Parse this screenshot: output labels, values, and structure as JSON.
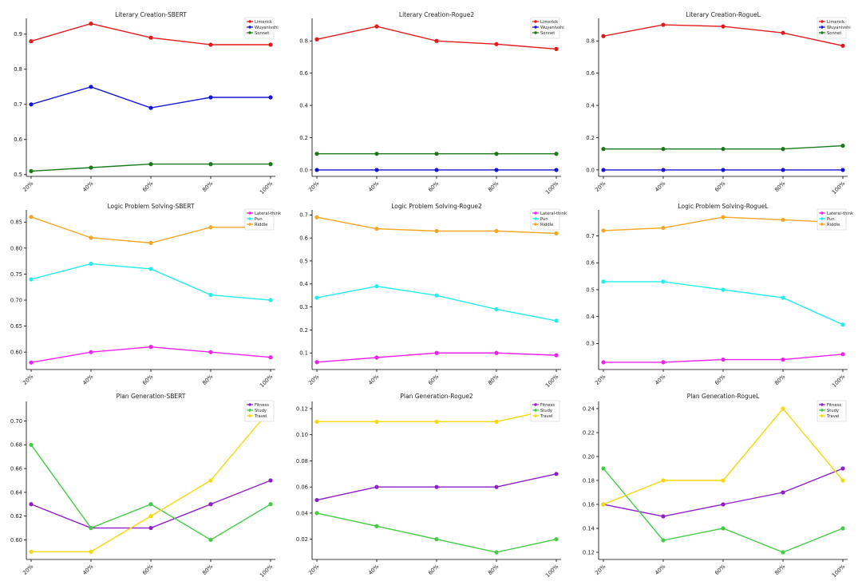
{
  "chart_data": [
    {
      "type": "line",
      "title": "Literary Creation-SBERT",
      "categories": [
        "20%",
        "40%",
        "60%",
        "80%",
        "100%"
      ],
      "ylim": [
        0.495,
        0.945
      ],
      "yticks": [
        0.5,
        0.6,
        0.7,
        0.8,
        0.9
      ],
      "ytick_labels": [
        "0.5",
        "0.6",
        "0.7",
        "0.8",
        "0.9"
      ],
      "legend": "top-right",
      "series": [
        {
          "name": "Limerick",
          "color": "#e31a1c",
          "values": [
            0.88,
            0.93,
            0.89,
            0.87,
            0.87
          ]
        },
        {
          "name": "Wuyanlvshi",
          "color": "#1515d6",
          "values": [
            0.7,
            0.75,
            0.69,
            0.72,
            0.72
          ]
        },
        {
          "name": "Sonnet",
          "color": "#1a7a1a",
          "values": [
            0.51,
            0.52,
            0.53,
            0.53,
            0.53
          ]
        }
      ]
    },
    {
      "type": "line",
      "title": "Literary Creation-Rogue2",
      "categories": [
        "20%",
        "40%",
        "60%",
        "80%",
        "100%"
      ],
      "ylim": [
        -0.04,
        0.94
      ],
      "yticks": [
        0.0,
        0.2,
        0.4,
        0.6,
        0.8
      ],
      "ytick_labels": [
        "0.0",
        "0.2",
        "0.4",
        "0.6",
        "0.8"
      ],
      "legend": "top-right",
      "series": [
        {
          "name": "Limerick",
          "color": "#e31a1c",
          "values": [
            0.81,
            0.89,
            0.8,
            0.78,
            0.75
          ]
        },
        {
          "name": "Wuyanlvshi",
          "color": "#1515d6",
          "values": [
            0.0,
            0.0,
            0.0,
            0.0,
            0.0
          ]
        },
        {
          "name": "Sonnet",
          "color": "#1a7a1a",
          "values": [
            0.1,
            0.1,
            0.1,
            0.1,
            0.1
          ]
        }
      ]
    },
    {
      "type": "line",
      "title": "Literary Creation-RogueL",
      "categories": [
        "20%",
        "40%",
        "60%",
        "80%",
        "100%"
      ],
      "ylim": [
        -0.04,
        0.94
      ],
      "yticks": [
        0.0,
        0.2,
        0.4,
        0.6,
        0.8
      ],
      "ytick_labels": [
        "0.0",
        "0.2",
        "0.4",
        "0.6",
        "0.8"
      ],
      "legend": "top-right",
      "series": [
        {
          "name": "Limerick",
          "color": "#e31a1c",
          "values": [
            0.83,
            0.9,
            0.89,
            0.85,
            0.77
          ]
        },
        {
          "name": "Wuyanlvshi",
          "color": "#1515d6",
          "values": [
            0.0,
            0.0,
            0.0,
            0.0,
            0.0
          ]
        },
        {
          "name": "Sonnet",
          "color": "#1a7a1a",
          "values": [
            0.13,
            0.13,
            0.13,
            0.13,
            0.15
          ]
        }
      ]
    },
    {
      "type": "line",
      "title": "Logic Problem Solving-SBERT",
      "categories": [
        "20%",
        "40%",
        "60%",
        "80%",
        "100%"
      ],
      "ylim": [
        0.5665,
        0.8735
      ],
      "yticks": [
        0.6,
        0.65,
        0.7,
        0.75,
        0.8,
        0.85
      ],
      "ytick_labels": [
        "0.60",
        "0.65",
        "0.70",
        "0.75",
        "0.80",
        "0.85"
      ],
      "legend": "top-right",
      "series": [
        {
          "name": "Lateral-think",
          "color": "#ee22ee",
          "values": [
            0.58,
            0.6,
            0.61,
            0.6,
            0.59
          ]
        },
        {
          "name": "Pun",
          "color": "#22eeee",
          "values": [
            0.74,
            0.77,
            0.76,
            0.71,
            0.7
          ]
        },
        {
          "name": "Riddle",
          "color": "#f5a623",
          "values": [
            0.86,
            0.82,
            0.81,
            0.84,
            0.84
          ]
        }
      ]
    },
    {
      "type": "line",
      "title": "Logic Problem Solving-Rogue2",
      "categories": [
        "20%",
        "40%",
        "60%",
        "80%",
        "100%"
      ],
      "ylim": [
        0.028,
        0.722
      ],
      "yticks": [
        0.1,
        0.2,
        0.3,
        0.4,
        0.5,
        0.6,
        0.7
      ],
      "ytick_labels": [
        "0.1",
        "0.2",
        "0.3",
        "0.4",
        "0.5",
        "0.6",
        "0.7"
      ],
      "legend": "top-right",
      "series": [
        {
          "name": "Lateral-think",
          "color": "#ee22ee",
          "values": [
            0.06,
            0.08,
            0.1,
            0.1,
            0.09
          ]
        },
        {
          "name": "Pun",
          "color": "#22eeee",
          "values": [
            0.34,
            0.39,
            0.35,
            0.29,
            0.24
          ]
        },
        {
          "name": "Riddle",
          "color": "#f5a623",
          "values": [
            0.69,
            0.64,
            0.63,
            0.63,
            0.62
          ]
        }
      ]
    },
    {
      "type": "line",
      "title": "Logic Problem Solving-RogueL",
      "categories": [
        "20%",
        "40%",
        "60%",
        "80%",
        "100%"
      ],
      "ylim": [
        0.203,
        0.797
      ],
      "yticks": [
        0.3,
        0.4,
        0.5,
        0.6,
        0.7
      ],
      "ytick_labels": [
        "0.3",
        "0.4",
        "0.5",
        "0.6",
        "0.7"
      ],
      "legend": "top-right",
      "series": [
        {
          "name": "Lateral-think",
          "color": "#ee22ee",
          "values": [
            0.23,
            0.23,
            0.24,
            0.24,
            0.26
          ]
        },
        {
          "name": "Pun",
          "color": "#22eeee",
          "values": [
            0.53,
            0.53,
            0.5,
            0.47,
            0.37
          ]
        },
        {
          "name": "Riddle",
          "color": "#f5a623",
          "values": [
            0.72,
            0.73,
            0.77,
            0.76,
            0.75
          ]
        }
      ]
    },
    {
      "type": "line",
      "title": "Plan Generation-SBERT",
      "categories": [
        "20%",
        "40%",
        "60%",
        "80%",
        "100%"
      ],
      "ylim": [
        0.5835,
        0.7165
      ],
      "yticks": [
        0.6,
        0.62,
        0.64,
        0.66,
        0.68,
        0.7
      ],
      "ytick_labels": [
        "0.60",
        "0.62",
        "0.64",
        "0.66",
        "0.68",
        "0.70"
      ],
      "legend": "top-right",
      "series": [
        {
          "name": "Fitness",
          "color": "#8e1ec8",
          "values": [
            0.63,
            0.61,
            0.61,
            0.63,
            0.65
          ]
        },
        {
          "name": "Study",
          "color": "#44cc44",
          "values": [
            0.68,
            0.61,
            0.63,
            0.6,
            0.63
          ]
        },
        {
          "name": "Travel",
          "color": "#f5d90a",
          "values": [
            0.59,
            0.59,
            0.62,
            0.65,
            0.71
          ]
        }
      ]
    },
    {
      "type": "line",
      "title": "Plan Generation-Rogue2",
      "categories": [
        "20%",
        "40%",
        "60%",
        "80%",
        "100%"
      ],
      "ylim": [
        0.0045,
        0.1255
      ],
      "yticks": [
        0.02,
        0.04,
        0.06,
        0.08,
        0.1,
        0.12
      ],
      "ytick_labels": [
        "0.02",
        "0.04",
        "0.06",
        "0.08",
        "0.10",
        "0.12"
      ],
      "legend": "top-right",
      "series": [
        {
          "name": "Fitness",
          "color": "#8e1ec8",
          "values": [
            0.05,
            0.06,
            0.06,
            0.06,
            0.07
          ]
        },
        {
          "name": "Study",
          "color": "#44cc44",
          "values": [
            0.04,
            0.03,
            0.02,
            0.01,
            0.02
          ]
        },
        {
          "name": "Travel",
          "color": "#f5d90a",
          "values": [
            0.11,
            0.11,
            0.11,
            0.11,
            0.12
          ]
        }
      ]
    },
    {
      "type": "line",
      "title": "Plan Generation-RogueL",
      "categories": [
        "20%",
        "40%",
        "60%",
        "80%",
        "100%"
      ],
      "ylim": [
        0.114,
        0.246
      ],
      "yticks": [
        0.12,
        0.14,
        0.16,
        0.18,
        0.2,
        0.22,
        0.24
      ],
      "ytick_labels": [
        "0.12",
        "0.14",
        "0.16",
        "0.18",
        "0.20",
        "0.22",
        "0.24"
      ],
      "legend": "top-right",
      "series": [
        {
          "name": "Fitness",
          "color": "#8e1ec8",
          "values": [
            0.16,
            0.15,
            0.16,
            0.17,
            0.19
          ]
        },
        {
          "name": "Study",
          "color": "#44cc44",
          "values": [
            0.19,
            0.13,
            0.14,
            0.12,
            0.14
          ]
        },
        {
          "name": "Travel",
          "color": "#f5d90a",
          "values": [
            0.16,
            0.18,
            0.18,
            0.24,
            0.18
          ]
        }
      ]
    }
  ]
}
